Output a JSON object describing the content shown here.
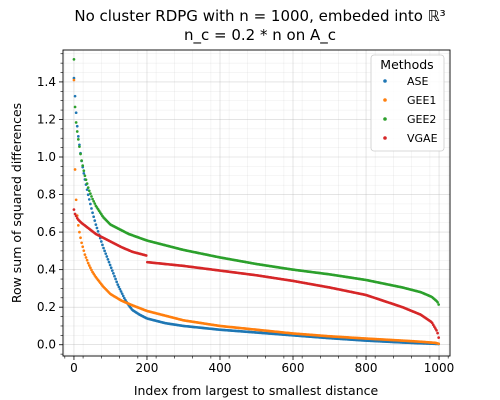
{
  "chart_data": {
    "type": "scatter",
    "title_line1": "No cluster RDPG with n = 1000, embeded into ℝ³",
    "title_line2": "n_c = 0.2 * n on A_c",
    "xlabel": "Index from largest to smallest distance",
    "ylabel": "Row sum of squared differences",
    "xlim": [
      -30,
      1030
    ],
    "ylim": [
      -0.06,
      1.57
    ],
    "xticks": [
      0,
      200,
      400,
      600,
      800,
      1000
    ],
    "yticks": [
      0.0,
      0.2,
      0.4,
      0.6,
      0.8,
      1.0,
      1.2,
      1.4
    ],
    "ytick_labels": [
      "0.0",
      "0.2",
      "0.4",
      "0.6",
      "0.8",
      "1.0",
      "1.2",
      "1.4"
    ],
    "grid": true,
    "legend": {
      "title": "Methods",
      "placement": "top-right"
    },
    "series": [
      {
        "name": "ASE",
        "color": "#1f77b4",
        "x": [
          0,
          5,
          10,
          20,
          30,
          40,
          50,
          60,
          70,
          80,
          90,
          100,
          110,
          120,
          130,
          140,
          150,
          160,
          180,
          200,
          250,
          300,
          400,
          500,
          600,
          700,
          800,
          900,
          950,
          1000
        ],
        "values": [
          1.42,
          1.26,
          1.14,
          0.99,
          0.88,
          0.79,
          0.71,
          0.64,
          0.58,
          0.52,
          0.47,
          0.42,
          0.37,
          0.32,
          0.28,
          0.24,
          0.21,
          0.185,
          0.16,
          0.14,
          0.115,
          0.1,
          0.08,
          0.065,
          0.05,
          0.035,
          0.022,
          0.012,
          0.008,
          0.004
        ]
      },
      {
        "name": "GEE1",
        "color": "#ff7f0e",
        "x": [
          0,
          2,
          5,
          10,
          15,
          20,
          30,
          40,
          50,
          60,
          80,
          100,
          130,
          160,
          200,
          250,
          300,
          400,
          500,
          600,
          700,
          800,
          900,
          950,
          990,
          1000
        ],
        "values": [
          1.41,
          1.0,
          0.8,
          0.66,
          0.6,
          0.55,
          0.48,
          0.43,
          0.39,
          0.36,
          0.31,
          0.27,
          0.235,
          0.21,
          0.18,
          0.155,
          0.13,
          0.1,
          0.08,
          0.06,
          0.045,
          0.033,
          0.022,
          0.016,
          0.01,
          0.005
        ]
      },
      {
        "name": "GEE2",
        "color": "#2ca02c",
        "x": [
          0,
          2,
          5,
          10,
          20,
          30,
          40,
          50,
          60,
          80,
          100,
          150,
          200,
          300,
          400,
          500,
          600,
          700,
          800,
          900,
          950,
          980,
          995,
          1000
        ],
        "values": [
          1.52,
          1.3,
          1.2,
          1.12,
          0.99,
          0.9,
          0.83,
          0.78,
          0.74,
          0.68,
          0.64,
          0.59,
          0.555,
          0.505,
          0.465,
          0.43,
          0.4,
          0.375,
          0.345,
          0.305,
          0.28,
          0.255,
          0.23,
          0.21
        ]
      },
      {
        "name": "VGAE",
        "color": "#d62728",
        "x": [
          0,
          2,
          5,
          10,
          20,
          40,
          60,
          80,
          100,
          130,
          160,
          199,
          200,
          250,
          300,
          400,
          500,
          600,
          700,
          800,
          900,
          950,
          980,
          995,
          1000
        ],
        "values": [
          0.72,
          0.7,
          0.69,
          0.67,
          0.65,
          0.62,
          0.59,
          0.57,
          0.55,
          0.52,
          0.495,
          0.475,
          0.44,
          0.43,
          0.42,
          0.395,
          0.37,
          0.34,
          0.305,
          0.265,
          0.2,
          0.16,
          0.12,
          0.07,
          0.03
        ]
      }
    ]
  }
}
